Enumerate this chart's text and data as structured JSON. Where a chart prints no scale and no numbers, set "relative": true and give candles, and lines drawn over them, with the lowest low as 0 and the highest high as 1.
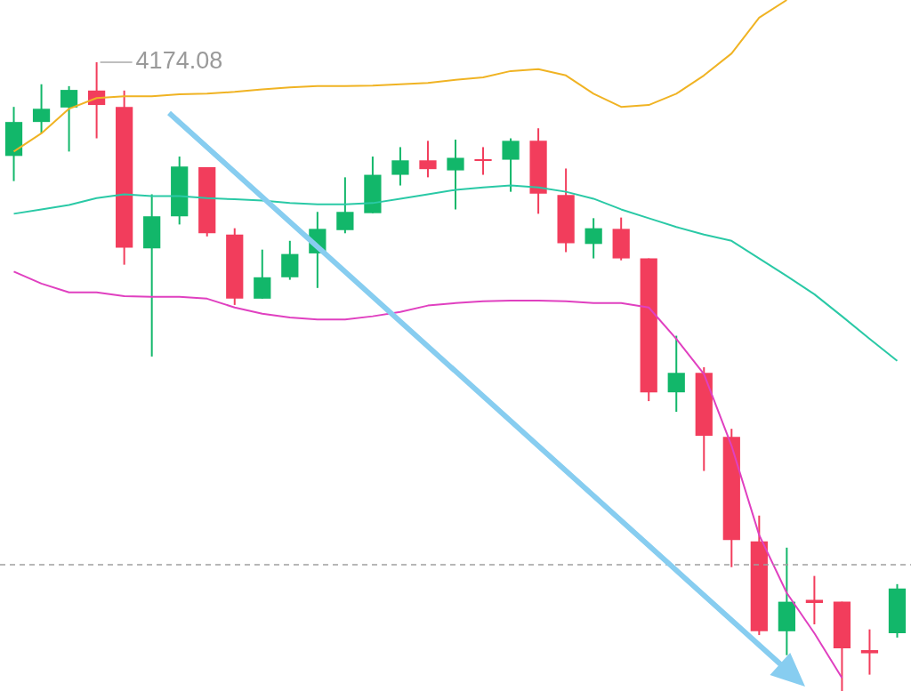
{
  "chart_data": {
    "type": "candlestick",
    "relative": true,
    "categories": [
      null,
      null,
      null,
      null,
      null,
      null,
      null,
      null,
      null,
      null,
      null,
      null,
      null,
      null,
      null,
      null,
      null,
      null,
      null,
      null,
      null,
      null,
      null,
      null,
      null,
      null,
      null,
      null,
      null,
      null,
      null,
      null,
      null
    ],
    "ohlc": [
      [
        0.851,
        0.929,
        0.811,
        0.905
      ],
      [
        0.905,
        0.965,
        0.887,
        0.926
      ],
      [
        0.928,
        0.962,
        0.858,
        0.956
      ],
      [
        0.955,
        1.0,
        0.879,
        0.932
      ],
      [
        0.929,
        0.955,
        0.678,
        0.705
      ],
      [
        0.704,
        0.79,
        0.532,
        0.755
      ],
      [
        0.755,
        0.85,
        0.742,
        0.834
      ],
      [
        0.833,
        0.833,
        0.723,
        0.728
      ],
      [
        0.726,
        0.736,
        0.614,
        0.624
      ],
      [
        0.624,
        0.702,
        0.624,
        0.658
      ],
      [
        0.658,
        0.716,
        0.654,
        0.695
      ],
      [
        0.696,
        0.762,
        0.641,
        0.735
      ],
      [
        0.733,
        0.817,
        0.728,
        0.762
      ],
      [
        0.76,
        0.85,
        0.76,
        0.821
      ],
      [
        0.821,
        0.865,
        0.804,
        0.844
      ],
      [
        0.844,
        0.875,
        0.817,
        0.83
      ],
      [
        0.828,
        0.877,
        0.766,
        0.848
      ],
      [
        0.845,
        0.865,
        0.821,
        0.843
      ],
      [
        0.845,
        0.879,
        0.794,
        0.875
      ],
      [
        0.875,
        0.895,
        0.759,
        0.791
      ],
      [
        0.789,
        0.831,
        0.698,
        0.712
      ],
      [
        0.711,
        0.752,
        0.688,
        0.736
      ],
      [
        0.735,
        0.753,
        0.685,
        0.688
      ],
      [
        0.688,
        0.688,
        0.461,
        0.475
      ],
      [
        0.475,
        0.565,
        0.444,
        0.506
      ],
      [
        0.506,
        0.515,
        0.35,
        0.406
      ],
      [
        0.404,
        0.417,
        0.197,
        0.24
      ],
      [
        0.238,
        0.279,
        0.089,
        0.095
      ],
      [
        0.095,
        0.228,
        0.057,
        0.142
      ],
      [
        0.145,
        0.183,
        0.106,
        0.14
      ],
      [
        0.142,
        0.142,
        0.0,
        0.068
      ],
      [
        0.065,
        0.098,
        0.026,
        0.06
      ],
      [
        0.092,
        0.17,
        0.085,
        0.163
      ]
    ],
    "colors": [
      "#12b76a",
      "#12b76a",
      "#12b76a",
      "#f23d5c",
      "#f23d5c",
      "#12b76a",
      "#12b76a",
      "#f23d5c",
      "#f23d5c",
      "#12b76a",
      "#12b76a",
      "#12b76a",
      "#12b76a",
      "#12b76a",
      "#12b76a",
      "#f23d5c",
      "#12b76a",
      "#f23d5c",
      "#12b76a",
      "#f23d5c",
      "#f23d5c",
      "#12b76a",
      "#f23d5c",
      "#f23d5c",
      "#12b76a",
      "#f23d5c",
      "#f23d5c",
      "#f23d5c",
      "#12b76a",
      "#f23d5c",
      "#f23d5c",
      "#f23d5c",
      "#12b76a"
    ],
    "series": [
      {
        "type": "line",
        "color": "#f0b323",
        "values": [
          0.858,
          0.887,
          0.926,
          0.943,
          0.946,
          0.946,
          0.949,
          0.95,
          0.953,
          0.957,
          0.96,
          0.962,
          0.962,
          0.963,
          0.965,
          0.967,
          0.972,
          0.976,
          0.986,
          0.989,
          0.979,
          0.95,
          0.929,
          0.932,
          0.95,
          0.979,
          1.014,
          1.071,
          1.099,
          null,
          null,
          null,
          null
        ]
      },
      {
        "type": "line",
        "color": "#2ac9a6",
        "values": [
          0.759,
          0.766,
          0.773,
          0.784,
          0.79,
          0.787,
          0.787,
          0.784,
          0.782,
          0.78,
          0.776,
          0.774,
          0.774,
          0.776,
          0.783,
          0.79,
          0.797,
          0.801,
          0.804,
          0.801,
          0.794,
          0.783,
          0.766,
          0.752,
          0.738,
          0.726,
          0.716,
          0.688,
          0.66,
          0.631,
          0.596,
          0.56,
          0.525
        ]
      },
      {
        "type": "line",
        "color": "#e040c0",
        "values": [
          0.667,
          0.648,
          0.634,
          0.634,
          0.628,
          0.627,
          0.627,
          0.624,
          0.61,
          0.6,
          0.594,
          0.591,
          0.591,
          0.596,
          0.603,
          0.613,
          0.617,
          0.62,
          0.621,
          0.621,
          0.62,
          0.617,
          0.617,
          0.61,
          0.56,
          0.504,
          0.39,
          0.248,
          0.156,
          0.092,
          0.021,
          null,
          null
        ]
      }
    ],
    "ref_lines": [
      {
        "axis": "y",
        "value": 0.201,
        "color": "#a0a0a0",
        "line_style": "dashed"
      }
    ],
    "annotations": [
      "4174.08"
    ]
  }
}
